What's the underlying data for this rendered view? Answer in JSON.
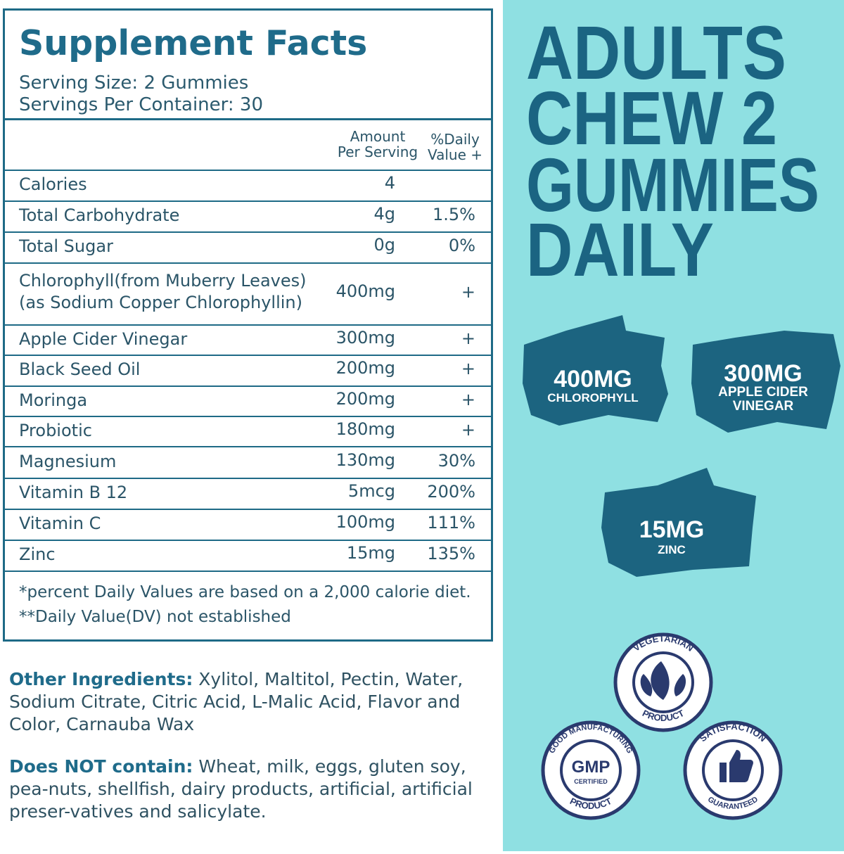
{
  "label": {
    "title": "Supplement Facts",
    "serving_size": "Serving Size: 2 Gummies",
    "servings": "Servings Per Container: 30",
    "header": {
      "amount": [
        "Amount",
        "Per Serving"
      ],
      "dv": [
        "%Daily",
        "Value +"
      ]
    },
    "rows": [
      {
        "name": "Calories",
        "amount": "4"
      },
      {
        "name": "Total Carbohydrate",
        "amount": "4g",
        "dv": "1.5%"
      },
      {
        "name": "Total Sugar",
        "amount": "0g",
        "dv": "0%"
      },
      {
        "name": "Chlorophyll(from Muberry Leaves)",
        "sub": "(as Sodium Copper Chlorophyllin)",
        "amount": "400mg",
        "dv": "+"
      },
      {
        "name": "Apple Cider Vinegar",
        "amount": "300mg",
        "dv": "+"
      },
      {
        "name": "Black Seed Oil",
        "amount": "200mg",
        "dv": "+"
      },
      {
        "name": "Moringa",
        "amount": "200mg",
        "dv": "+"
      },
      {
        "name": "Probiotic",
        "amount": "180mg",
        "dv": "+"
      },
      {
        "name": "Magnesium",
        "amount": "130mg",
        "dv": "30%"
      },
      {
        "name": "Vitamin B 12",
        "amount": "5mcg",
        "dv": "200%"
      },
      {
        "name": "Vitamin C",
        "amount": "100mg",
        "dv": "111%"
      },
      {
        "name": "Zinc",
        "amount": "15mg",
        "dv": "135%"
      }
    ],
    "footnotes": [
      "*percent Daily Values are based on a 2,000 calorie diet.",
      "**Daily Value(DV) not established"
    ]
  },
  "other_ingredients": {
    "label": "Other Ingredients:",
    "text": " Xylitol, Maltitol, Pectin, Water, Sodium Citrate, Citric Acid, L-Malic Acid, Flavor and Color, Carnauba Wax"
  },
  "does_not_contain": {
    "label": "Does NOT contain:",
    "text": " Wheat, milk, eggs, gluten soy, pea-nuts, shellfish, dairy products, artificial, artificial preser-vatives and salicylate."
  },
  "headline": [
    "ADULTS",
    "CHEW 2",
    "GUMMIES",
    "DAILY"
  ],
  "badges": [
    {
      "amount": "400MG",
      "name": "CHLOROPHYLL"
    },
    {
      "amount": "300MG",
      "name": [
        "APPLE CIDER",
        "VINEGAR"
      ]
    },
    {
      "amount": "15MG",
      "name": "ZINC"
    }
  ],
  "seals": [
    {
      "top": "VEGETARIAN",
      "bottom": "PRODUCT"
    },
    {
      "top": "GOOD MANUFACTURING",
      "bottom": "PRODUCT",
      "center": "GMP",
      "sub": "CERTIFIED"
    },
    {
      "top": "SATISFACTION",
      "bottom": "GUARANTEED"
    }
  ]
}
